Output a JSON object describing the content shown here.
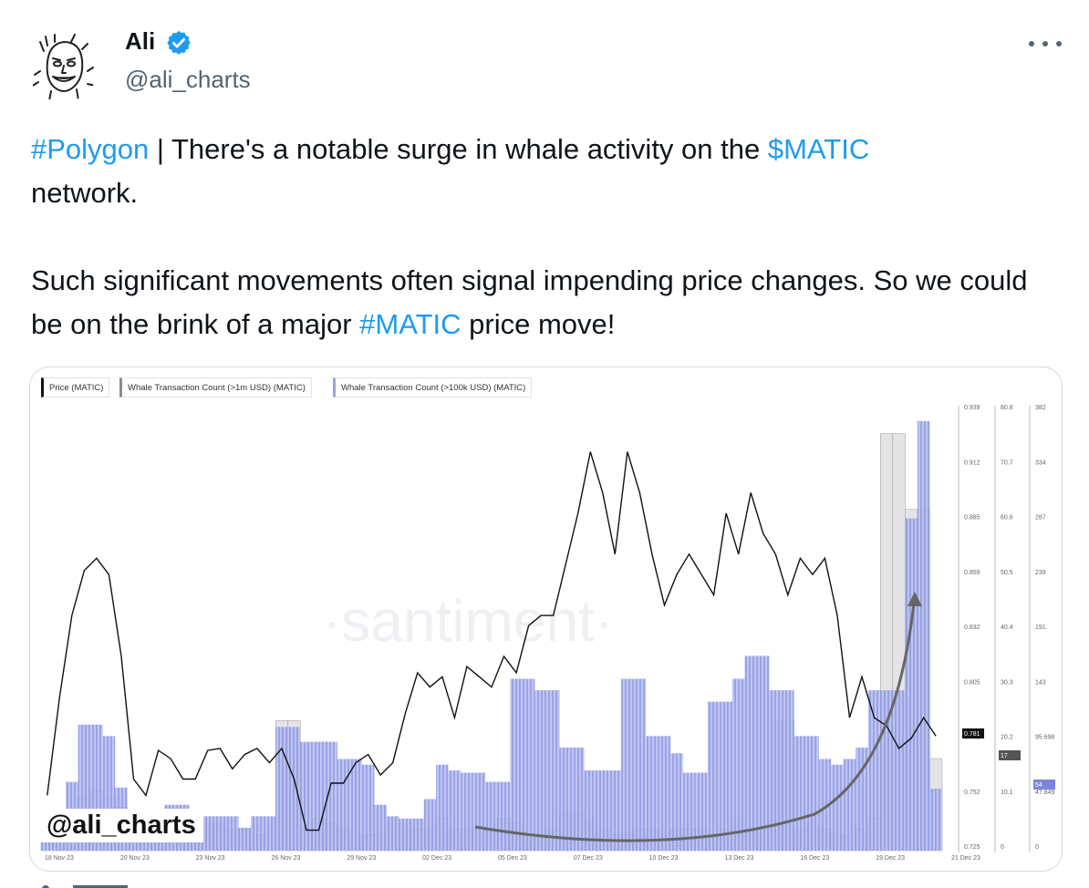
{
  "author": {
    "name": "Ali",
    "handle": "@ali_charts",
    "verified": true,
    "avatar_icon": "meme-face-avatar",
    "verified_color": "#1d9bf0"
  },
  "menu_icon": "more-dots-icon",
  "tweet": {
    "p1": [
      {
        "text": "#Polygon",
        "link": true
      },
      {
        "text": " | There's a notable surge in whale activity on the ",
        "link": false
      },
      {
        "text": "$MATIC",
        "link": true
      },
      {
        "text": " network.",
        "link": false
      }
    ],
    "p2": [
      {
        "text": "Such significant movements often signal impending price changes. So we could be on the brink of a major ",
        "link": false
      },
      {
        "text": "#MATIC",
        "link": true
      },
      {
        "text": " price move!",
        "link": false
      }
    ],
    "link_color": "#1d9bf0"
  },
  "media": {
    "legend": [
      {
        "label": "Price (MATIC)",
        "color": "#111111"
      },
      {
        "label": "Whale Transaction Count (>1m USD) (MATIC)",
        "color": "#8c8c8c"
      },
      {
        "label": "Whale Transaction Count (>100k USD) (MATIC)",
        "color": "#9aa3e6"
      }
    ],
    "watermark": "·santiment·",
    "handle_overlay": "@ali_charts",
    "chart_data": {
      "type": "line",
      "x_ticks": [
        "18 Nov 23",
        "20 Nov 23",
        "23 Nov 23",
        "26 Nov 23",
        "29 Nov 23",
        "02 Dec 23",
        "05 Dec 23",
        "07 Dec 23",
        "10 Dec 23",
        "13 Dec 23",
        "16 Dec 23",
        "19 Dec 23",
        "21 Dec 23"
      ],
      "axes": {
        "price": {
          "ticks": [
            "0.939",
            "0.912",
            "0.885",
            "0.859",
            "0.832",
            "0.805",
            "0.781",
            "0.752",
            "0.725"
          ],
          "current": "0.781"
        },
        "whale_1m": {
          "ticks": [
            "80.8",
            "70.7",
            "60.6",
            "50.5",
            "40.4",
            "30.3",
            "20.2",
            "10.1",
            "0"
          ],
          "current": "17"
        },
        "whale_100k": {
          "ticks": [
            "382",
            "334",
            "287",
            "239",
            "191",
            "143",
            "95.698",
            "47.849",
            "0"
          ],
          "current": "54"
        }
      },
      "series": [
        {
          "name": "Price (MATIC)",
          "unit": "USD",
          "values": [
            0.752,
            0.8,
            0.84,
            0.862,
            0.868,
            0.86,
            0.82,
            0.76,
            0.752,
            0.774,
            0.77,
            0.76,
            0.76,
            0.774,
            0.775,
            0.765,
            0.772,
            0.775,
            0.768,
            0.775,
            0.76,
            0.735,
            0.735,
            0.758,
            0.758,
            0.768,
            0.772,
            0.762,
            0.768,
            0.792,
            0.812,
            0.805,
            0.81,
            0.79,
            0.815,
            0.81,
            0.805,
            0.82,
            0.812,
            0.835,
            0.84,
            0.84,
            0.865,
            0.89,
            0.92,
            0.9,
            0.87,
            0.92,
            0.9,
            0.87,
            0.845,
            0.86,
            0.87,
            0.86,
            0.85,
            0.89,
            0.87,
            0.9,
            0.88,
            0.87,
            0.85,
            0.868,
            0.86,
            0.868,
            0.84,
            0.79,
            0.81,
            0.79,
            0.786,
            0.775,
            0.78,
            0.79,
            0.781
          ]
        },
        {
          "name": "Whale Transaction Count (>1m USD) (MATIC)",
          "values": [
            2,
            3,
            4,
            10,
            11,
            10,
            8,
            3,
            2,
            2,
            2,
            3,
            3,
            5,
            5,
            4,
            4,
            3,
            3,
            24,
            24,
            4,
            6,
            5,
            4,
            3,
            3,
            3,
            5,
            5,
            4,
            4,
            6,
            4,
            4,
            4,
            4,
            6,
            5,
            3,
            3,
            4,
            7,
            7,
            5,
            4,
            3,
            3,
            4,
            4,
            3,
            4,
            4,
            4,
            3,
            4,
            6,
            4,
            4,
            24,
            24,
            4,
            5,
            4,
            3,
            3,
            4,
            6,
            77,
            77,
            63,
            63,
            17
          ]
        },
        {
          "name": "Whale Transaction Count (>100k USD) (MATIC)",
          "values": [
            18,
            25,
            60,
            110,
            110,
            100,
            55,
            18,
            15,
            25,
            40,
            40,
            20,
            30,
            30,
            30,
            20,
            30,
            30,
            108,
            108,
            95,
            95,
            95,
            80,
            80,
            75,
            40,
            30,
            28,
            28,
            45,
            75,
            70,
            68,
            68,
            60,
            60,
            150,
            150,
            140,
            140,
            90,
            90,
            70,
            70,
            70,
            150,
            150,
            100,
            100,
            85,
            68,
            68,
            130,
            130,
            150,
            170,
            170,
            140,
            140,
            100,
            100,
            80,
            75,
            80,
            90,
            140,
            140,
            140,
            290,
            375,
            54
          ]
        }
      ]
    }
  }
}
